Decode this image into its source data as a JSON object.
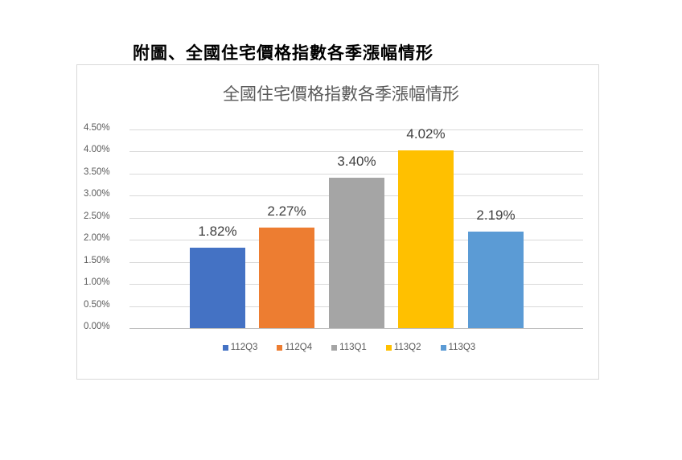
{
  "document": {
    "caption": "附圖、全國住宅價格指數各季漲幅情形"
  },
  "chart_data": {
    "type": "bar",
    "title": "全國住宅價格指數各季漲幅情形",
    "categories": [
      "112Q3",
      "112Q4",
      "113Q1",
      "113Q2",
      "113Q3"
    ],
    "values": [
      1.82,
      2.27,
      3.4,
      4.02,
      2.19
    ],
    "value_labels": [
      "1.82%",
      "2.27%",
      "3.40%",
      "4.02%",
      "2.19%"
    ],
    "colors": [
      "#4472c4",
      "#ed7d31",
      "#a5a5a5",
      "#ffc000",
      "#5b9bd5"
    ],
    "xlabel": "",
    "ylabel": "",
    "ylim": [
      0,
      4.5
    ],
    "y_ticks": [
      "4.50%",
      "4.00%",
      "3.50%",
      "3.00%",
      "2.50%",
      "2.00%",
      "1.50%",
      "1.00%",
      "0.50%",
      "0.00%"
    ],
    "grid": true,
    "legend_position": "bottom",
    "legend": [
      "112Q3",
      "112Q4",
      "113Q1",
      "113Q2",
      "113Q3"
    ]
  }
}
